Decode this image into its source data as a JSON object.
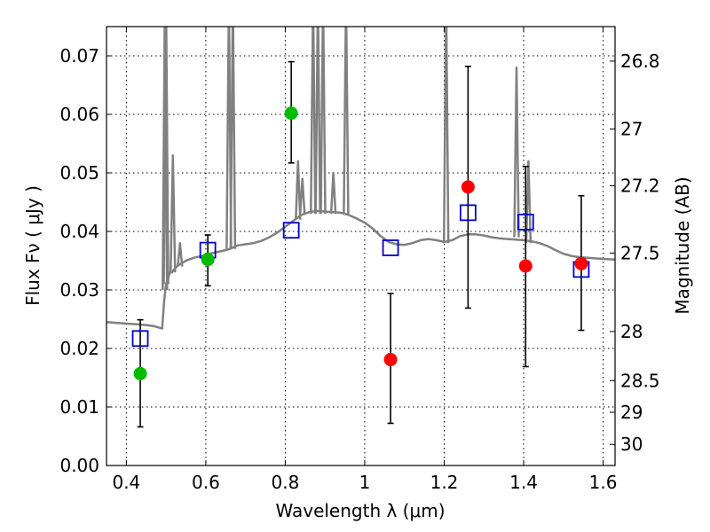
{
  "chart_data": {
    "type": "scatter",
    "xlabel": "Wavelength  λ (μm)",
    "ylabel": "Flux  Fν  ( μJy )",
    "y2label": "Magnitude (AB)",
    "xlim": [
      0.35,
      1.63
    ],
    "ylim": [
      0.0,
      0.075
    ],
    "grid": true,
    "x_ticks": [
      {
        "value": 0.4,
        "label": "0.4"
      },
      {
        "value": 0.6,
        "label": "0.6"
      },
      {
        "value": 0.8,
        "label": "0.8"
      },
      {
        "value": 1.0,
        "label": "1"
      },
      {
        "value": 1.2,
        "label": "1.2"
      },
      {
        "value": 1.4,
        "label": "1.4"
      },
      {
        "value": 1.6,
        "label": "1.6"
      }
    ],
    "y_ticks": [
      {
        "value": 0.0,
        "label": "0.00"
      },
      {
        "value": 0.01,
        "label": "0.01"
      },
      {
        "value": 0.02,
        "label": "0.02"
      },
      {
        "value": 0.03,
        "label": "0.03"
      },
      {
        "value": 0.04,
        "label": "0.04"
      },
      {
        "value": 0.05,
        "label": "0.05"
      },
      {
        "value": 0.06,
        "label": "0.06"
      },
      {
        "value": 0.07,
        "label": "0.07"
      }
    ],
    "y2_ticks": [
      {
        "flux": 0.0691,
        "label": "26.8"
      },
      {
        "flux": 0.0575,
        "label": "27"
      },
      {
        "flux": 0.0478,
        "label": "27.2"
      },
      {
        "flux": 0.0363,
        "label": "27.5"
      },
      {
        "flux": 0.0229,
        "label": "28"
      },
      {
        "flux": 0.0145,
        "label": "28.5"
      },
      {
        "flux": 0.0091,
        "label": "29"
      },
      {
        "flux": 0.0036,
        "label": "30"
      }
    ],
    "colors": {
      "spectrum": "#808080",
      "detection": "#00bb00",
      "upper_limit": "#ff0000",
      "model": "#0000cc",
      "errorbar": "#000000"
    },
    "series": [
      {
        "kind": "spectrum",
        "x": [
          0.35,
          0.37,
          0.39,
          0.41,
          0.43,
          0.45,
          0.47,
          0.48,
          0.49,
          0.495,
          0.498,
          0.5,
          0.505,
          0.51,
          0.515,
          0.52,
          0.53,
          0.55,
          0.57,
          0.59,
          0.61,
          0.63,
          0.65,
          0.66,
          0.67,
          0.68,
          0.7,
          0.72,
          0.74,
          0.76,
          0.78,
          0.8,
          0.82,
          0.84,
          0.86,
          0.88,
          0.9,
          0.92,
          0.94,
          0.96,
          0.98,
          1.0,
          1.02,
          1.04,
          1.06,
          1.08,
          1.1,
          1.12,
          1.14,
          1.16,
          1.18,
          1.2,
          1.22,
          1.24,
          1.26,
          1.28,
          1.3,
          1.32,
          1.34,
          1.36,
          1.38,
          1.4,
          1.42,
          1.44,
          1.46,
          1.48,
          1.5,
          1.52,
          1.54,
          1.56,
          1.58,
          1.6,
          1.63
        ],
        "y": [
          0.0245,
          0.0244,
          0.0243,
          0.0242,
          0.0241,
          0.024,
          0.0238,
          0.0236,
          0.0234,
          0.028,
          0.03,
          0.031,
          0.032,
          0.033,
          0.033,
          0.0335,
          0.0342,
          0.035,
          0.0355,
          0.0358,
          0.0362,
          0.0365,
          0.0368,
          0.037,
          0.0373,
          0.0376,
          0.0378,
          0.038,
          0.0384,
          0.039,
          0.0398,
          0.0408,
          0.0418,
          0.0428,
          0.0433,
          0.0435,
          0.0434,
          0.0433,
          0.0432,
          0.0428,
          0.0422,
          0.0415,
          0.0405,
          0.0392,
          0.0382,
          0.0378,
          0.0377,
          0.038,
          0.0385,
          0.0387,
          0.0385,
          0.0382,
          0.0385,
          0.0392,
          0.0395,
          0.0395,
          0.0393,
          0.039,
          0.0388,
          0.0387,
          0.0386,
          0.0385,
          0.0383,
          0.038,
          0.0375,
          0.0368,
          0.0362,
          0.0358,
          0.0356,
          0.0355,
          0.0354,
          0.0353,
          0.0352
        ]
      },
      {
        "kind": "emission_lines",
        "lines": [
          {
            "x": 0.497,
            "peak": 0.08,
            "base": 0.03
          },
          {
            "x": 0.5,
            "peak": 0.08,
            "base": 0.031
          },
          {
            "x": 0.517,
            "peak": 0.053,
            "base": 0.033
          },
          {
            "x": 0.535,
            "peak": 0.038,
            "base": 0.034
          },
          {
            "x": 0.658,
            "peak": 0.08,
            "base": 0.037
          },
          {
            "x": 0.668,
            "peak": 0.08,
            "base": 0.037
          },
          {
            "x": 0.832,
            "peak": 0.052,
            "base": 0.042
          },
          {
            "x": 0.843,
            "peak": 0.049,
            "base": 0.043
          },
          {
            "x": 0.87,
            "peak": 0.08,
            "base": 0.043
          },
          {
            "x": 0.882,
            "peak": 0.08,
            "base": 0.043
          },
          {
            "x": 0.895,
            "peak": 0.08,
            "base": 0.043
          },
          {
            "x": 0.921,
            "peak": 0.05,
            "base": 0.043
          },
          {
            "x": 0.953,
            "peak": 0.08,
            "base": 0.043
          },
          {
            "x": 1.205,
            "peak": 0.08,
            "base": 0.038
          },
          {
            "x": 1.382,
            "peak": 0.068,
            "base": 0.039
          },
          {
            "x": 1.412,
            "peak": 0.052,
            "base": 0.038
          }
        ]
      },
      {
        "kind": "model",
        "x": [
          0.435,
          0.605,
          0.815,
          1.065,
          1.26,
          1.405,
          1.545
        ],
        "y": [
          0.0217,
          0.0368,
          0.0402,
          0.0372,
          0.0432,
          0.0416,
          0.0335
        ]
      },
      {
        "kind": "detection",
        "x": [
          0.435,
          0.605,
          0.815
        ],
        "y": [
          0.0157,
          0.0352,
          0.0602
        ],
        "yerr_low": [
          0.0066,
          0.0307,
          0.0517
        ],
        "yerr_high": [
          0.0249,
          0.0394,
          0.069
        ]
      },
      {
        "kind": "upper_limit",
        "x": [
          1.065,
          1.26,
          1.405,
          1.545
        ],
        "y": [
          0.0181,
          0.0476,
          0.0341,
          0.0345
        ],
        "yerr_low": [
          0.0072,
          0.0269,
          0.0169,
          0.0231
        ],
        "yerr_high": [
          0.0294,
          0.0682,
          0.0511,
          0.0461
        ]
      }
    ]
  }
}
